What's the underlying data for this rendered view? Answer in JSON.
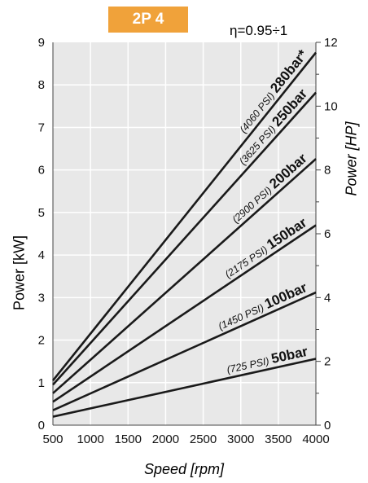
{
  "chart_data": {
    "type": "line",
    "title": "2P 4",
    "annotation": "η=0.95÷1",
    "xlabel": "Speed [rpm]",
    "ylabel": "Power [kW]",
    "ylabel_right": "Power [HP]",
    "xlim": [
      500,
      4000
    ],
    "ylim": [
      0,
      9
    ],
    "ylim_right": [
      0,
      12
    ],
    "x_ticks": [
      500,
      1000,
      1500,
      2000,
      2500,
      3000,
      3500,
      4000
    ],
    "y_ticks": [
      0,
      1,
      2,
      3,
      4,
      5,
      6,
      7,
      8,
      9
    ],
    "y_ticks_right": [
      0,
      2,
      4,
      6,
      8,
      10,
      12
    ],
    "grid": true,
    "series": [
      {
        "name": "50bar",
        "psi": "(725 PSI)",
        "x": [
          500,
          4000
        ],
        "y": [
          0.2,
          1.56
        ]
      },
      {
        "name": "100bar",
        "psi": "(1450 PSI)",
        "x": [
          500,
          4000
        ],
        "y": [
          0.35,
          3.12
        ]
      },
      {
        "name": "150bar",
        "psi": "(2175 PSI)",
        "x": [
          500,
          4000
        ],
        "y": [
          0.55,
          4.7
        ]
      },
      {
        "name": "200bar",
        "psi": "(2900 PSI)",
        "x": [
          500,
          4000
        ],
        "y": [
          0.75,
          6.26
        ]
      },
      {
        "name": "250bar",
        "psi": "(3625 PSI)",
        "x": [
          500,
          4000
        ],
        "y": [
          0.95,
          7.82
        ]
      },
      {
        "name": "280bar*",
        "psi": "(4060 PSI)",
        "x": [
          500,
          4000
        ],
        "y": [
          1.05,
          8.76
        ]
      }
    ]
  },
  "colors": {
    "badge": "#f0a23a",
    "plot_bg": "#e8e8e8",
    "grid": "#ffffff",
    "line": "#1a1a1a"
  }
}
